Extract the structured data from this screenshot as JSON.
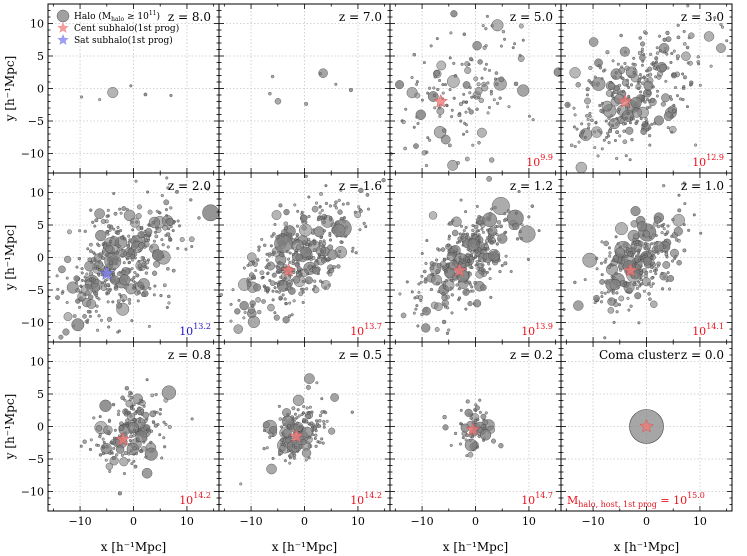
{
  "chart_data": {
    "type": "scatter",
    "layout": "3x4 panel grid",
    "xlabel": "x [h⁻¹Mpc]",
    "ylabel": "y [h⁻¹Mpc]",
    "xlim": [
      -16,
      16
    ],
    "ylim": [
      -13,
      13
    ],
    "xticks": [
      -10,
      0,
      10
    ],
    "xtick_labels": [
      "−10",
      "0",
      "10"
    ],
    "yticks": [
      -10,
      -5,
      0,
      5,
      10
    ],
    "ytick_labels": [
      "−10",
      "−5",
      "0",
      "5",
      "10"
    ],
    "grid": true,
    "legend": {
      "placement": "top-left of first panel",
      "entries": [
        {
          "label": "Halo (M",
          "sub": "halo",
          "rest": " ≥ 10",
          "sup": "11",
          "close": ")",
          "marker": "circle",
          "color": "#808080"
        },
        {
          "label": "Cent subhalo(1st prog)",
          "marker": "star",
          "color": "#f28c8c"
        },
        {
          "label": "Sat subhalo(1st prog)",
          "marker": "star",
          "color": "#8c8cf2"
        }
      ]
    },
    "colors": {
      "halo": "#808080",
      "halo_edge": "#444444",
      "central": "#f07a7a",
      "satellite": "#8080ee",
      "mass_red": "#e8121e",
      "mass_blue": "#1a14c8"
    },
    "panels": [
      {
        "redshift": "z = 8.0",
        "mass_base": "",
        "mass_exp": "",
        "mass_color": "",
        "star": null,
        "n_halos": 6,
        "spread_x": 10,
        "spread_y": 2,
        "elongation": 0.0
      },
      {
        "redshift": "z = 7.0",
        "mass_base": "",
        "mass_exp": "",
        "mass_color": "",
        "star": null,
        "n_halos": 8,
        "spread_x": 9,
        "spread_y": 3,
        "elongation": 0.0
      },
      {
        "redshift": "z = 5.0",
        "mass_base": "10",
        "mass_exp": "9.9",
        "mass_color": "red",
        "star": {
          "type": "central",
          "x": -6.5,
          "y": -2.0
        },
        "n_halos": 150,
        "spread_x": 7,
        "spread_y": 5,
        "elongation": 0.4
      },
      {
        "redshift": "z = 3.0",
        "mass_base": "10",
        "mass_exp": "12.9",
        "mass_color": "red",
        "star": {
          "type": "central",
          "x": -4.0,
          "y": -2.0
        },
        "n_halos": 330,
        "spread_x": 7,
        "spread_y": 4.5,
        "elongation": 0.5
      },
      {
        "redshift": "z = 2.0",
        "mass_base": "10",
        "mass_exp": "13.2",
        "mass_color": "blue",
        "star": {
          "type": "satellite",
          "x": -5.0,
          "y": -2.5
        },
        "n_halos": 420,
        "spread_x": 6.5,
        "spread_y": 4,
        "elongation": 0.55
      },
      {
        "redshift": "z = 1.6",
        "mass_base": "10",
        "mass_exp": "13.7",
        "mass_color": "red",
        "star": {
          "type": "central",
          "x": -3.0,
          "y": -2.0
        },
        "n_halos": 380,
        "spread_x": 6,
        "spread_y": 3.5,
        "elongation": 0.55
      },
      {
        "redshift": "z = 1.2",
        "mass_base": "10",
        "mass_exp": "13.9",
        "mass_color": "red",
        "star": {
          "type": "central",
          "x": -3.0,
          "y": -2.0
        },
        "n_halos": 330,
        "spread_x": 5.5,
        "spread_y": 3.2,
        "elongation": 0.6
      },
      {
        "redshift": "z = 1.0",
        "mass_base": "10",
        "mass_exp": "14.1",
        "mass_color": "red",
        "star": {
          "type": "central",
          "x": -3.0,
          "y": -2.0
        },
        "n_halos": 300,
        "spread_x": 5,
        "spread_y": 3,
        "elongation": 0.6
      },
      {
        "redshift": "z = 0.8",
        "mass_base": "10",
        "mass_exp": "14.2",
        "mass_color": "red",
        "star": {
          "type": "central",
          "x": -2.0,
          "y": -2.0
        },
        "n_halos": 200,
        "spread_x": 4,
        "spread_y": 2.8,
        "elongation": 0.5
      },
      {
        "redshift": "z = 0.5",
        "mass_base": "10",
        "mass_exp": "14.2",
        "mass_color": "red",
        "star": {
          "type": "central",
          "x": -1.5,
          "y": -1.5
        },
        "n_halos": 150,
        "spread_x": 3.5,
        "spread_y": 2.5,
        "elongation": 0.5
      },
      {
        "redshift": "z = 0.2",
        "mass_base": "10",
        "mass_exp": "14.7",
        "mass_color": "red",
        "star": {
          "type": "central",
          "x": -0.5,
          "y": -0.5
        },
        "n_halos": 70,
        "spread_x": 2,
        "spread_y": 2,
        "elongation": 0.3
      },
      {
        "redshift": "z = 0.0",
        "title": "Coma cluster",
        "mass_base": "M",
        "mass_sub": "halo, host, 1st prog",
        "mass_eq": " = 10",
        "mass_exp": "15.0",
        "mass_color": "red",
        "star": {
          "type": "central",
          "x": 0.0,
          "y": 0.0
        },
        "n_halos": 1,
        "spread_x": 0,
        "spread_y": 0,
        "elongation": 0
      }
    ]
  }
}
